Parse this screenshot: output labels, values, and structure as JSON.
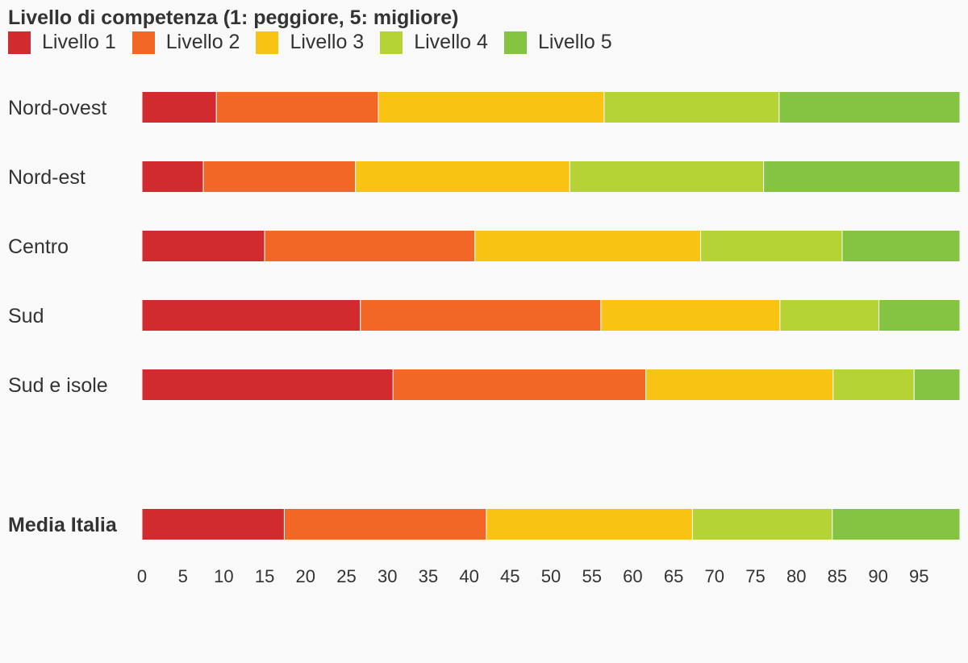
{
  "chart_data": {
    "type": "bar",
    "orientation": "horizontal",
    "stacked": true,
    "title": "Livello di competenza (1: peggiore, 5: migliore)",
    "legend_position": "top-left",
    "grid": false,
    "categories": [
      "Nord-ovest",
      "Nord-est",
      "Centro",
      "Sud",
      "Sud e isole",
      "Media Italia"
    ],
    "highlighted_category": "Media Italia",
    "series": [
      {
        "name": "Livello 1",
        "color": "#d12b2f",
        "values": [
          9.1,
          7.5,
          15.0,
          26.7,
          30.7,
          17.4
        ]
      },
      {
        "name": "Livello 2",
        "color": "#f26726",
        "values": [
          19.8,
          18.6,
          25.7,
          29.4,
          30.9,
          24.7
        ]
      },
      {
        "name": "Livello 3",
        "color": "#f9c314",
        "values": [
          27.6,
          26.2,
          27.6,
          21.9,
          22.9,
          25.2
        ]
      },
      {
        "name": "Livello 4",
        "color": "#b5d334",
        "values": [
          21.4,
          23.7,
          17.3,
          12.1,
          9.9,
          17.1
        ]
      },
      {
        "name": "Livello 5",
        "color": "#85c343",
        "values": [
          22.1,
          24.0,
          14.4,
          9.9,
          5.6,
          15.6
        ]
      }
    ],
    "x_ticks": [
      "0",
      "5",
      "10",
      "15",
      "20",
      "25",
      "30",
      "35",
      "40",
      "45",
      "50",
      "55",
      "60",
      "65",
      "70",
      "75",
      "80",
      "85",
      "90",
      "95"
    ],
    "xlim": [
      0,
      100
    ]
  }
}
